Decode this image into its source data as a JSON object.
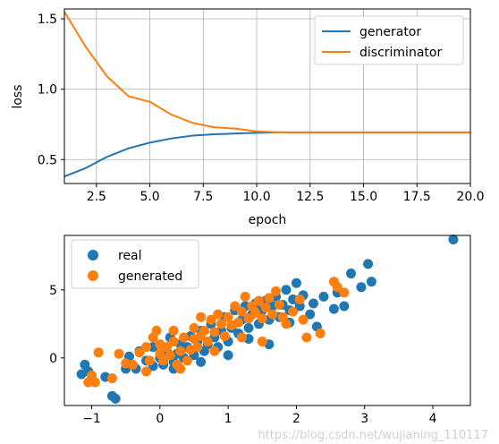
{
  "colors": {
    "generator": "#1f77b4",
    "discriminator": "#ff7f0e",
    "real": "#1f77b4",
    "generated": "#ff7f0e",
    "grid": "#b0b0b0"
  },
  "watermark": "https://blog.csdn.net/wujianing_110117",
  "chart_data": [
    {
      "type": "line",
      "xlabel": "epoch",
      "ylabel": "loss",
      "xlim": [
        1,
        20
      ],
      "ylim": [
        0.33,
        1.57
      ],
      "xticks": [
        2.5,
        5.0,
        7.5,
        10.0,
        12.5,
        15.0,
        17.5,
        20.0
      ],
      "xtick_labels": [
        "2.5",
        "5.0",
        "7.5",
        "10.0",
        "12.5",
        "15.0",
        "17.5",
        "20.0"
      ],
      "yticks": [
        0.5,
        1.0,
        1.5
      ],
      "ytick_labels": [
        "0.5",
        "1.0",
        "1.5"
      ],
      "grid": true,
      "legend_position": "top-right",
      "x": [
        1,
        2,
        3,
        4,
        5,
        6,
        7,
        8,
        9,
        10,
        11,
        12,
        13,
        14,
        15,
        16,
        17,
        18,
        19,
        20
      ],
      "series": [
        {
          "name": "generator",
          "values": [
            0.38,
            0.44,
            0.52,
            0.58,
            0.62,
            0.65,
            0.67,
            0.68,
            0.685,
            0.69,
            0.693,
            0.693,
            0.693,
            0.693,
            0.693,
            0.693,
            0.693,
            0.693,
            0.693,
            0.693
          ]
        },
        {
          "name": "discriminator",
          "values": [
            1.55,
            1.3,
            1.09,
            0.95,
            0.91,
            0.82,
            0.76,
            0.73,
            0.72,
            0.7,
            0.693,
            0.693,
            0.693,
            0.693,
            0.693,
            0.693,
            0.693,
            0.693,
            0.693,
            0.693
          ]
        }
      ]
    },
    {
      "type": "scatter",
      "xlim": [
        -1.4,
        4.55
      ],
      "ylim": [
        -3.5,
        9.0
      ],
      "xticks": [
        -1,
        0,
        1,
        2,
        3,
        4
      ],
      "xtick_labels": [
        "−1",
        "0",
        "1",
        "2",
        "3",
        "4"
      ],
      "yticks": [
        0,
        5
      ],
      "ytick_labels": [
        "0",
        "5"
      ],
      "grid": false,
      "legend_position": "top-left",
      "series": [
        {
          "name": "real",
          "points": [
            [
              -1.1,
              -0.5
            ],
            [
              -1.15,
              -1.2
            ],
            [
              -1.05,
              -1.0
            ],
            [
              -0.8,
              -1.4
            ],
            [
              -0.7,
              -2.8
            ],
            [
              -0.65,
              -3.0
            ],
            [
              -0.5,
              -0.8
            ],
            [
              -0.45,
              0.1
            ],
            [
              -0.3,
              0.5
            ],
            [
              -0.35,
              -0.8
            ],
            [
              -0.2,
              -0.2
            ],
            [
              -0.1,
              0.8
            ],
            [
              0.0,
              0.0
            ],
            [
              0.05,
              -0.5
            ],
            [
              0.1,
              0.5
            ],
            [
              0.15,
              1.5
            ],
            [
              0.2,
              -0.3
            ],
            [
              0.25,
              0.3
            ],
            [
              0.3,
              1.0
            ],
            [
              0.35,
              0.0
            ],
            [
              0.4,
              0.8
            ],
            [
              0.45,
              1.6
            ],
            [
              0.5,
              0.2
            ],
            [
              0.55,
              1.2
            ],
            [
              0.6,
              2.0
            ],
            [
              0.65,
              0.5
            ],
            [
              0.7,
              1.0
            ],
            [
              0.75,
              2.5
            ],
            [
              0.8,
              1.5
            ],
            [
              0.85,
              0.8
            ],
            [
              0.9,
              2.0
            ],
            [
              0.95,
              3.0
            ],
            [
              1.0,
              1.2
            ],
            [
              1.05,
              2.2
            ],
            [
              1.1,
              3.5
            ],
            [
              1.15,
              1.8
            ],
            [
              1.2,
              2.8
            ],
            [
              1.25,
              3.8
            ],
            [
              1.3,
              2.2
            ],
            [
              1.35,
              3.2
            ],
            [
              1.4,
              4.0
            ],
            [
              1.45,
              2.5
            ],
            [
              1.5,
              3.5
            ],
            [
              1.55,
              4.2
            ],
            [
              1.6,
              2.8
            ],
            [
              1.65,
              3.8
            ],
            [
              1.7,
              4.5
            ],
            [
              1.75,
              3.0
            ],
            [
              1.8,
              3.9
            ],
            [
              1.85,
              5.0
            ],
            [
              1.9,
              3.5
            ],
            [
              1.95,
              4.3
            ],
            [
              2.0,
              5.5
            ],
            [
              2.05,
              3.8
            ],
            [
              2.1,
              4.6
            ],
            [
              2.2,
              3.2
            ],
            [
              2.3,
              2.3
            ],
            [
              2.4,
              4.5
            ],
            [
              2.55,
              3.6
            ],
            [
              2.6,
              4.8
            ],
            [
              2.7,
              3.8
            ],
            [
              2.8,
              6.2
            ],
            [
              2.95,
              5.2
            ],
            [
              3.05,
              6.9
            ],
            [
              3.1,
              5.6
            ],
            [
              4.3,
              8.7
            ],
            [
              1.0,
              0.2
            ],
            [
              1.3,
              1.4
            ],
            [
              0.6,
              -0.3
            ],
            [
              1.6,
              1.0
            ],
            [
              1.9,
              2.6
            ],
            [
              0.2,
              -0.8
            ],
            [
              -0.1,
              -0.6
            ],
            [
              2.25,
              4.0
            ]
          ]
        },
        {
          "name": "generated",
          "points": [
            [
              -1.05,
              -1.8
            ],
            [
              -0.95,
              -1.8
            ],
            [
              -0.9,
              0.4
            ],
            [
              -1.0,
              -1.3
            ],
            [
              -0.7,
              -1.5
            ],
            [
              -0.5,
              -0.4
            ],
            [
              -0.4,
              -0.5
            ],
            [
              -0.6,
              0.3
            ],
            [
              -0.3,
              0.4
            ],
            [
              -0.2,
              0.8
            ],
            [
              -0.15,
              -0.2
            ],
            [
              -0.05,
              2.0
            ],
            [
              -0.1,
              1.5
            ],
            [
              0.0,
              1.0
            ],
            [
              0.0,
              0.3
            ],
            [
              0.05,
              -0.2
            ],
            [
              0.1,
              0.8
            ],
            [
              0.15,
              0.2
            ],
            [
              0.2,
              1.2
            ],
            [
              0.2,
              2.0
            ],
            [
              0.25,
              -0.5
            ],
            [
              0.3,
              0.5
            ],
            [
              0.35,
              1.5
            ],
            [
              0.4,
              -0.2
            ],
            [
              0.45,
              0.6
            ],
            [
              0.5,
              2.2
            ],
            [
              0.5,
              1.4
            ],
            [
              0.55,
              0.8
            ],
            [
              0.6,
              1.6
            ],
            [
              0.6,
              3.0
            ],
            [
              0.65,
              2.0
            ],
            [
              0.7,
              1.2
            ],
            [
              0.75,
              2.8
            ],
            [
              0.8,
              1.9
            ],
            [
              0.85,
              3.2
            ],
            [
              0.9,
              2.5
            ],
            [
              0.95,
              1.6
            ],
            [
              1.0,
              3.0
            ],
            [
              1.05,
              2.4
            ],
            [
              1.1,
              3.8
            ],
            [
              1.15,
              2.6
            ],
            [
              1.2,
              3.4
            ],
            [
              1.25,
              4.5
            ],
            [
              1.3,
              2.9
            ],
            [
              1.35,
              3.8
            ],
            [
              1.4,
              3.3
            ],
            [
              1.45,
              4.2
            ],
            [
              1.5,
              2.9
            ],
            [
              1.55,
              3.7
            ],
            [
              1.6,
              4.4
            ],
            [
              1.65,
              3.2
            ],
            [
              1.7,
              4.9
            ],
            [
              1.75,
              3.9
            ],
            [
              1.8,
              3.0
            ],
            [
              1.85,
              2.5
            ],
            [
              1.95,
              3.4
            ],
            [
              2.05,
              4.3
            ],
            [
              2.1,
              2.8
            ],
            [
              2.15,
              1.5
            ],
            [
              2.35,
              1.8
            ],
            [
              2.55,
              5.6
            ],
            [
              2.6,
              5.2
            ],
            [
              2.7,
              4.8
            ],
            [
              1.2,
              1.5
            ],
            [
              0.8,
              0.5
            ],
            [
              1.5,
              1.2
            ],
            [
              0.3,
              -0.8
            ],
            [
              -0.2,
              -1.0
            ]
          ]
        }
      ]
    }
  ]
}
